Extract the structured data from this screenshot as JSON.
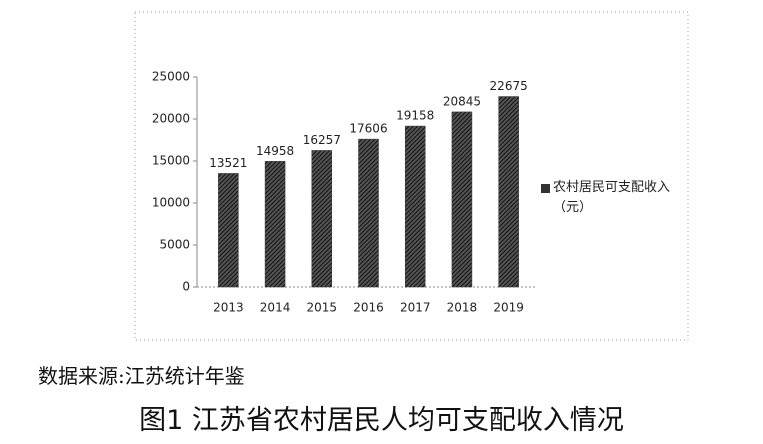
{
  "chart_data": {
    "type": "bar",
    "title": "图1 江苏省农村居民人均可支配收入情况",
    "source": "数据来源:江苏统计年鉴",
    "categories": [
      "2013",
      "2014",
      "2015",
      "2016",
      "2017",
      "2018",
      "2019"
    ],
    "series": [
      {
        "name": "农村居民可支配收入（元）",
        "color": "#333333",
        "values": [
          13521,
          14958,
          16257,
          17606,
          19158,
          20845,
          22675
        ]
      }
    ],
    "ylim": [
      0,
      25000
    ],
    "yticks": [
      0,
      5000,
      10000,
      15000,
      20000,
      25000
    ],
    "legend": "right",
    "grid": false
  }
}
